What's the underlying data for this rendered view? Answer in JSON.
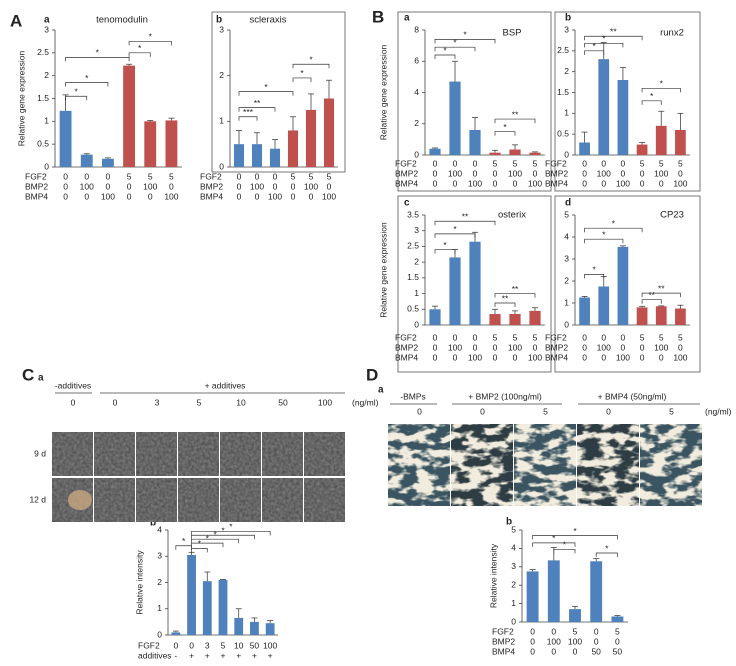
{
  "panel_letters": [
    "A",
    "B",
    "C",
    "D"
  ],
  "chart_data": [
    {
      "type": "bar",
      "panel": "a",
      "title": "tenomodulin",
      "ylabel": "Relative gene expression",
      "ylim": [
        0,
        3
      ],
      "yticks": [
        0,
        0.5,
        1,
        1.5,
        2,
        2.5,
        3
      ],
      "values": [
        1.23,
        0.27,
        0.18,
        2.22,
        1.0,
        1.02
      ],
      "errors": [
        0.35,
        0.02,
        0.02,
        0.03,
        0.02,
        0.05
      ],
      "colors": [
        "#4f81bd",
        "#4f81bd",
        "#4f81bd",
        "#c0504d",
        "#c0504d",
        "#c0504d"
      ],
      "conditions": [
        {
          "name": "FGF2",
          "values": [
            0,
            0,
            0,
            5,
            5,
            5
          ]
        },
        {
          "name": "BMP2",
          "values": [
            0,
            100,
            0,
            0,
            100,
            0
          ]
        },
        {
          "name": "BMP4",
          "values": [
            0,
            0,
            100,
            0,
            0,
            100
          ]
        }
      ],
      "annotations": [
        "*",
        "*",
        "*",
        "*",
        "*"
      ]
    },
    {
      "type": "bar",
      "panel": "b",
      "title": "scleraxis",
      "ylim": [
        0,
        3
      ],
      "yticks": [
        0,
        1,
        2,
        3
      ],
      "values": [
        0.5,
        0.5,
        0.4,
        0.8,
        1.25,
        1.5
      ],
      "errors": [
        0.3,
        0.25,
        0.2,
        0.3,
        0.35,
        0.4
      ],
      "colors": [
        "#4f81bd",
        "#4f81bd",
        "#4f81bd",
        "#c0504d",
        "#c0504d",
        "#c0504d"
      ],
      "conditions": [
        {
          "name": "FGF2",
          "values": [
            0,
            0,
            0,
            5,
            5,
            5
          ]
        },
        {
          "name": "BMP2",
          "values": [
            0,
            100,
            0,
            0,
            100,
            0
          ]
        },
        {
          "name": "BMP4",
          "values": [
            0,
            0,
            100,
            0,
            0,
            100
          ]
        }
      ],
      "annotations": [
        "***",
        "**",
        "*",
        "*",
        "*"
      ]
    },
    {
      "type": "bar",
      "panel": "a",
      "title": "BSP",
      "ylabel": "Relative gene expression",
      "ylim": [
        0,
        8
      ],
      "yticks": [
        0,
        2,
        4,
        6,
        8
      ],
      "values": [
        0.4,
        4.7,
        1.6,
        0.15,
        0.35,
        0.15
      ],
      "errors": [
        0.05,
        1.3,
        0.8,
        0.15,
        0.3,
        0.05
      ],
      "colors": [
        "#4f81bd",
        "#4f81bd",
        "#4f81bd",
        "#c0504d",
        "#c0504d",
        "#c0504d"
      ],
      "conditions": [
        {
          "name": "FGF2",
          "values": [
            0,
            0,
            0,
            5,
            5,
            5
          ]
        },
        {
          "name": "BMP2",
          "values": [
            0,
            100,
            0,
            0,
            100,
            0
          ]
        },
        {
          "name": "BMP4",
          "values": [
            0,
            0,
            100,
            0,
            0,
            100
          ]
        }
      ],
      "annotations": [
        "*",
        "*",
        "*",
        "*",
        "**"
      ]
    },
    {
      "type": "bar",
      "panel": "b",
      "title": "runx2",
      "ylim": [
        0,
        3
      ],
      "yticks": [
        0,
        0.5,
        1,
        1.5,
        2,
        2.5,
        3
      ],
      "values": [
        0.3,
        2.3,
        1.8,
        0.25,
        0.7,
        0.6
      ],
      "errors": [
        0.25,
        0.4,
        0.3,
        0.05,
        0.35,
        0.4
      ],
      "colors": [
        "#4f81bd",
        "#4f81bd",
        "#4f81bd",
        "#c0504d",
        "#c0504d",
        "#c0504d"
      ],
      "conditions": [
        {
          "name": "FGF2",
          "values": [
            0,
            0,
            0,
            5,
            5,
            5
          ]
        },
        {
          "name": "BMP2",
          "values": [
            0,
            100,
            0,
            0,
            100,
            0
          ]
        },
        {
          "name": "BMP4",
          "values": [
            0,
            0,
            100,
            0,
            0,
            100
          ]
        }
      ],
      "annotations": [
        "*",
        "*",
        "**",
        "*",
        "*"
      ]
    },
    {
      "type": "bar",
      "panel": "c",
      "title": "osterix",
      "ylabel": "Relative gene expression",
      "ylim": [
        0,
        3.5
      ],
      "yticks": [
        0,
        0.5,
        1,
        1.5,
        2,
        2.5,
        3,
        3.5
      ],
      "values": [
        0.5,
        2.15,
        2.65,
        0.35,
        0.35,
        0.45
      ],
      "errors": [
        0.1,
        0.25,
        0.3,
        0.15,
        0.1,
        0.1
      ],
      "colors": [
        "#4f81bd",
        "#4f81bd",
        "#4f81bd",
        "#c0504d",
        "#c0504d",
        "#c0504d"
      ],
      "conditions": [
        {
          "name": "FGF2",
          "values": [
            0,
            0,
            0,
            5,
            5,
            5
          ]
        },
        {
          "name": "BMP2",
          "values": [
            0,
            100,
            0,
            0,
            100,
            0
          ]
        },
        {
          "name": "BMP4",
          "values": [
            0,
            0,
            100,
            0,
            0,
            100
          ]
        }
      ],
      "annotations": [
        "*",
        "*",
        "**",
        "**",
        "**"
      ]
    },
    {
      "type": "bar",
      "panel": "d",
      "title": "CP23",
      "ylim": [
        0,
        5
      ],
      "yticks": [
        0,
        1,
        2,
        3,
        4,
        5
      ],
      "values": [
        1.25,
        1.75,
        3.55,
        0.8,
        0.85,
        0.75
      ],
      "errors": [
        0.05,
        0.45,
        0.05,
        0.05,
        0.02,
        0.15
      ],
      "colors": [
        "#4f81bd",
        "#4f81bd",
        "#4f81bd",
        "#c0504d",
        "#c0504d",
        "#c0504d"
      ],
      "conditions": [
        {
          "name": "FGF2",
          "values": [
            0,
            0,
            0,
            5,
            5,
            5
          ]
        },
        {
          "name": "BMP2",
          "values": [
            0,
            100,
            0,
            0,
            100,
            0
          ]
        },
        {
          "name": "BMP4",
          "values": [
            0,
            0,
            100,
            0,
            0,
            100
          ]
        }
      ],
      "annotations": [
        "*",
        "*",
        "*",
        "**",
        "**"
      ]
    },
    {
      "type": "bar",
      "panel": "b",
      "ylabel": "Relative intensity",
      "ylim": [
        0,
        4
      ],
      "yticks": [
        0,
        1,
        2,
        3,
        4
      ],
      "values": [
        0.1,
        3.05,
        2.05,
        2.1,
        0.65,
        0.5,
        0.45
      ],
      "errors": [
        0.05,
        0.1,
        0.35,
        0.02,
        0.35,
        0.15,
        0.1
      ],
      "colors": [
        "#4f81bd",
        "#4f81bd",
        "#4f81bd",
        "#4f81bd",
        "#4f81bd",
        "#4f81bd",
        "#4f81bd"
      ],
      "conditions": [
        {
          "name": "FGF2",
          "values": [
            0,
            0,
            3,
            5,
            10,
            50,
            100
          ]
        },
        {
          "name": "additives",
          "values": [
            "-",
            "+",
            "+",
            "+",
            "+",
            "+",
            "+"
          ]
        }
      ],
      "annotations": [
        "*",
        "*",
        "*",
        "*",
        "*",
        "*"
      ]
    },
    {
      "type": "bar",
      "panel": "b",
      "ylabel": "Relative intensity",
      "ylim": [
        0,
        5
      ],
      "yticks": [
        0,
        1,
        2,
        3,
        4,
        5
      ],
      "values": [
        2.75,
        3.35,
        0.7,
        3.3,
        0.3
      ],
      "errors": [
        0.1,
        0.7,
        0.15,
        0.15,
        0.05
      ],
      "colors": [
        "#4f81bd",
        "#4f81bd",
        "#4f81bd",
        "#4f81bd",
        "#4f81bd"
      ],
      "conditions": [
        {
          "name": "FGF2",
          "values": [
            0,
            0,
            5,
            0,
            5
          ]
        },
        {
          "name": "BMP2",
          "values": [
            0,
            100,
            100,
            0,
            0
          ]
        },
        {
          "name": "BMP4",
          "values": [
            0,
            0,
            0,
            50,
            50
          ]
        }
      ],
      "annotations": [
        "*",
        "*",
        "*",
        "*"
      ]
    }
  ],
  "image_panels": [
    {
      "panel": "a",
      "headers": [
        "-additives",
        "+ additives"
      ],
      "columns": [
        0,
        0,
        3,
        5,
        10,
        50,
        100
      ],
      "unit": "(ng/ml)",
      "rows": [
        "9 d",
        "12 d"
      ]
    },
    {
      "panel": "a",
      "headers": [
        "-BMPs",
        "+ BMP2 (100ng/ml)",
        "+ BMP4 (50ng/ml)"
      ],
      "columns": [
        0,
        0,
        5,
        0,
        5
      ],
      "unit": "(ng/ml)"
    }
  ]
}
